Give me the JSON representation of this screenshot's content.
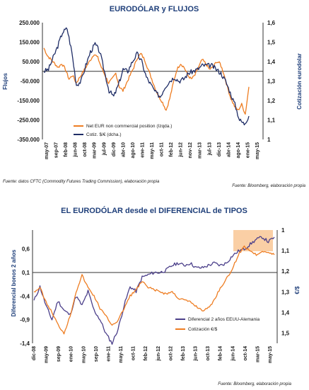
{
  "chart_data": [
    {
      "type": "line",
      "title": "EURODÓLAR y FLUJOS",
      "ylabel_left": "Flujos",
      "ylabel_right": "Cotización eurodolar",
      "yticks_left": [
        "250.000",
        "150.000",
        "50.000",
        "-50.000",
        "-150.000",
        "-250.000",
        "-350.000"
      ],
      "ylim_left": [
        -350000,
        250000
      ],
      "yticks_right": [
        "1,6",
        "1,5",
        "1,4",
        "1,3",
        "1,2",
        "1,1",
        "1"
      ],
      "ylim_right": [
        1.0,
        1.6
      ],
      "xticks": [
        "may-07",
        "sep-07",
        "feb-08",
        "jun-08",
        "oct-08",
        "mar-09",
        "jul-09",
        "dic-09",
        "abr-10",
        "ago-10",
        "ene-11",
        "may-11",
        "oct-11",
        "feb-12",
        "jun-12",
        "nov-12",
        "mar-13",
        "jul-13",
        "dic-13",
        "abr-14",
        "ago-14",
        "ene-15",
        "may-15"
      ],
      "legend": [
        "Net EUR non commercial position (Izqda.)",
        "Cotiz. $/€ (dcha.)"
      ],
      "legend_position": "bottom-right",
      "source": "Fuente: datos CFTC (Commodity Futures Trading Commission), elaboración propia",
      "source_right": "Fuente: Bloomberg, elaboración propia",
      "series": [
        {
          "name": "Net EUR non commercial position (Izqda.)",
          "color": "#ee7d22",
          "axis": "left",
          "values": [
            120000,
            80000,
            60000,
            40000,
            20000,
            40000,
            10000,
            -40000,
            -20000,
            -60000,
            -30000,
            0,
            30000,
            60000,
            90000,
            70000,
            20000,
            -20000,
            -60000,
            -40000,
            -10000,
            -80000,
            -100000,
            -60000,
            -20000,
            20000,
            70000,
            90000,
            60000,
            10000,
            -40000,
            -90000,
            -130000,
            -160000,
            -200000,
            -140000,
            -60000,
            10000,
            40000,
            20000,
            -20000,
            -40000,
            -20000,
            20000,
            60000,
            40000,
            10000,
            20000,
            50000,
            40000,
            -10000,
            -80000,
            -140000,
            -180000,
            -200000,
            -170000,
            -220000,
            -80000
          ]
        },
        {
          "name": "Cotiz. $/€ (dcha.)",
          "color": "#1f2d66",
          "axis": "right",
          "values": [
            1.35,
            1.36,
            1.42,
            1.48,
            1.55,
            1.57,
            1.45,
            1.28,
            1.3,
            1.38,
            1.45,
            1.49,
            1.45,
            1.35,
            1.25,
            1.22,
            1.28,
            1.36,
            1.35,
            1.4,
            1.44,
            1.4,
            1.32,
            1.28,
            1.24,
            1.22,
            1.27,
            1.3,
            1.32,
            1.3,
            1.31,
            1.34,
            1.35,
            1.36,
            1.38,
            1.38,
            1.38,
            1.36,
            1.34,
            1.3,
            1.24,
            1.18,
            1.1,
            1.08,
            1.12
          ]
        }
      ]
    },
    {
      "type": "line",
      "title": "EL EURODÓLAR desde el DIFERENCIAL de TIPOS",
      "ylabel_left": "Diferencial bonos 2 años",
      "ylabel_right": "€/$",
      "yticks_left": [
        "0,6",
        "0,1",
        "-0,4",
        "-0,9",
        "-1,4"
      ],
      "ylim_left": [
        -1.4,
        1.0
      ],
      "yticks_right": [
        "1",
        "1,1",
        "1,2",
        "1,3",
        "1,4",
        "1,5"
      ],
      "ylim_right": [
        1.0,
        1.55
      ],
      "xticks": [
        "dic-08",
        "may-09",
        "sep-09",
        "ene-10",
        "may-10",
        "sep-10",
        "ene-11",
        "may-11",
        "oct-11",
        "feb-12",
        "jun-12",
        "oct-12",
        "feb-13",
        "jun-13",
        "oct-13",
        "feb-14",
        "jun-14",
        "oct-14",
        "mar-15",
        "may-15"
      ],
      "legend": [
        "Diferencial 2 años EEUU-Alemania",
        "Cotización €/$"
      ],
      "legend_position": "bottom-right",
      "source": "Fuente: Bloomberg, elaboración propia",
      "series": [
        {
          "name": "Diferencial 2 años EEUU-Alemania",
          "color": "#4b3f8a",
          "axis": "left",
          "values": [
            -0.5,
            -0.2,
            -0.6,
            -0.9,
            -0.5,
            -0.7,
            -0.8,
            -0.4,
            -0.6,
            -0.3,
            -0.7,
            -0.9,
            -1.2,
            -1.4,
            -1.1,
            -0.6,
            -0.2,
            -0.3,
            0.0,
            0.05,
            0.1,
            0.1,
            0.15,
            0.25,
            0.3,
            0.25,
            0.3,
            0.2,
            0.2,
            0.25,
            0.3,
            0.25,
            0.3,
            0.45,
            0.55,
            0.6,
            0.7,
            0.8,
            0.85,
            0.75,
            0.85
          ]
        },
        {
          "name": "Cotización €/$",
          "color": "#ee7d22",
          "axis": "right",
          "values": [
            1.3,
            1.28,
            1.35,
            1.4,
            1.46,
            1.5,
            1.42,
            1.3,
            1.22,
            1.28,
            1.32,
            1.38,
            1.42,
            1.46,
            1.44,
            1.38,
            1.32,
            1.29,
            1.25,
            1.28,
            1.29,
            1.3,
            1.31,
            1.3,
            1.33,
            1.34,
            1.35,
            1.37,
            1.39,
            1.38,
            1.34,
            1.28,
            1.24,
            1.19,
            1.12,
            1.08,
            1.1,
            1.12,
            1.1,
            1.11,
            1.12
          ]
        }
      ]
    }
  ]
}
